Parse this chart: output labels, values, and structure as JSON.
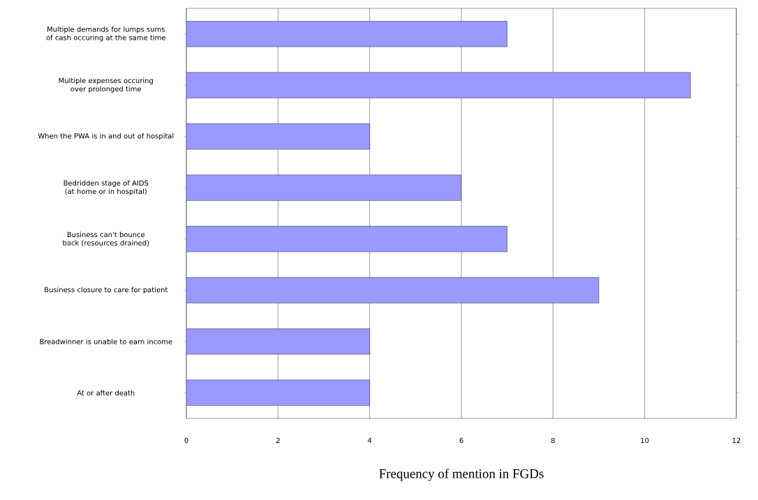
{
  "chart_data": {
    "type": "bar",
    "orientation": "horizontal",
    "xlabel": "Frequency of mention in FGDs",
    "categories": [
      "Multiple demands for lumps sums of cash occuring at the same time",
      "Multiple expenses occuring over prolonged time",
      "When the PWA is in and out of hospital",
      "Bedridden stage of AIDS  (at home or in hospital)",
      "Business can't bounce back (resources drained)",
      "Business closure to care for patient",
      "Breadwinner is unable to earn income",
      "At or after death"
    ],
    "values": [
      7,
      11,
      4,
      6,
      7,
      9,
      4,
      4
    ],
    "color": "#9999ff",
    "xlim": [
      0,
      12
    ],
    "xticks": [
      0,
      2,
      4,
      6,
      8,
      10,
      12
    ],
    "grid": "x"
  }
}
